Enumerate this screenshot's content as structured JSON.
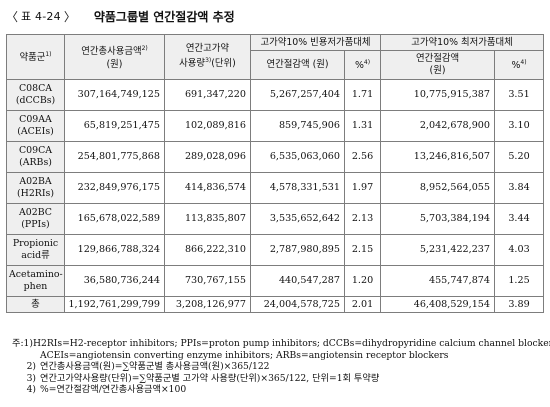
{
  "title": {
    "open_bracket": "〈",
    "label": "표 4-24",
    "close_bracket": "〉",
    "text": "약품그룹별 연간절감액 추정"
  },
  "table": {
    "headers": {
      "drug": "약품군",
      "drug_sup": "1)",
      "total_cost": "연간총사용금액",
      "total_cost_sup": "2)",
      "total_cost_unit": "(원)",
      "high_use": "연간고가약",
      "high_use_line2": "사용량",
      "high_use_sup": "3)",
      "high_use_unit": "(단위)",
      "group_freq": "고가약10% 빈용저가품대체",
      "group_min": "고가약10% 최저가품대체",
      "saving_freq": "연간절감액 (원)",
      "pct_freq": "%",
      "pct_freq_sup": "4)",
      "saving_min_line1": "연간절감액",
      "saving_min_line2": "(원)",
      "pct_min": "%",
      "pct_min_sup": "4)"
    },
    "rows": [
      {
        "drug_line1": "C08CA",
        "drug_line2": "(dCCBs)",
        "total_cost": "307,164,749,125",
        "high_use": "691,347,220",
        "saving_freq": "5,267,257,404",
        "pct_freq": "1.71",
        "saving_min": "10,775,915,387",
        "pct_min": "3.51"
      },
      {
        "drug_line1": "C09AA",
        "drug_line2": "(ACEIs)",
        "total_cost": "65,819,251,475",
        "high_use": "102,089,816",
        "saving_freq": "859,745,906",
        "pct_freq": "1.31",
        "saving_min": "2,042,678,900",
        "pct_min": "3.10"
      },
      {
        "drug_line1": "C09CA",
        "drug_line2": "(ARBs)",
        "total_cost": "254,801,775,868",
        "high_use": "289,028,096",
        "saving_freq": "6,535,063,060",
        "pct_freq": "2.56",
        "saving_min": "13,246,816,507",
        "pct_min": "5.20"
      },
      {
        "drug_line1": "A02BA",
        "drug_line2": "(H2RIs)",
        "total_cost": "232,849,976,175",
        "high_use": "414,836,574",
        "saving_freq": "4,578,331,531",
        "pct_freq": "1.97",
        "saving_min": "8,952,564,055",
        "pct_min": "3.84"
      },
      {
        "drug_line1": "A02BC",
        "drug_line2": "(PPIs)",
        "total_cost": "165,678,022,589",
        "high_use": "113,835,807",
        "saving_freq": "3,535,652,642",
        "pct_freq": "2.13",
        "saving_min": "5,703,384,194",
        "pct_min": "3.44"
      },
      {
        "drug_line1": "Propionic",
        "drug_line2": "acid류",
        "total_cost": "129,866,788,324",
        "high_use": "866,222,310",
        "saving_freq": "2,787,980,895",
        "pct_freq": "2.15",
        "saving_min": "5,231,422,237",
        "pct_min": "4.03"
      },
      {
        "drug_line1": "Acetamino-",
        "drug_line2": "phen",
        "total_cost": "36,580,736,244",
        "high_use": "730,767,155",
        "saving_freq": "440,547,287",
        "pct_freq": "1.20",
        "saving_min": "455,747,874",
        "pct_min": "1.25"
      }
    ],
    "total": {
      "label": "총",
      "total_cost": "1,192,761,299,799",
      "high_use": "3,208,126,977",
      "saving_freq": "24,004,578,725",
      "pct_freq": "2.01",
      "saving_min": "46,408,529,154",
      "pct_min": "3.89"
    }
  },
  "notes": [
    {
      "mark": "주:1)",
      "text": "H2RIs=H2-receptor inhibitors; PPIs=proton pump inhibitors; dCCBs=dihydropyridine calcium channel blockers;",
      "cont": "ACEIs=angiotensin converting enzyme inhibitors; ARBs=angiotensin receptor blockers"
    },
    {
      "mark": "2)",
      "text": "연간총사용금액(원)=∑약품군별 총사용금액(원)×365/122",
      "cont": ""
    },
    {
      "mark": "3)",
      "text": "연간고가약사용량(단위)=∑약품군별 고가약 사용량(단위)×365/122,  단위=1회 투약량",
      "cont": ""
    },
    {
      "mark": "4)",
      "text": "%=연간절감액/연간총사용금액×100",
      "cont": ""
    }
  ]
}
